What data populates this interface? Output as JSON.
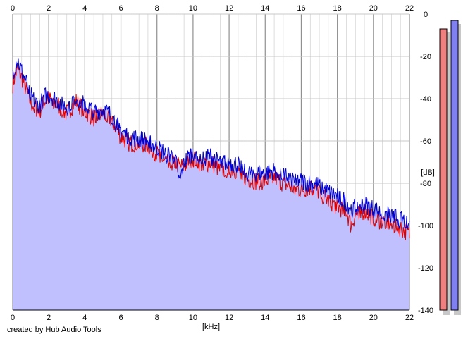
{
  "footer": {
    "credit": "created by Hub Audio Tools"
  },
  "colors": {
    "background": "#ffffff",
    "plot_fill": "#c0c0ff",
    "grid_minor": "#c8c8c8",
    "grid_major": "#909090",
    "left_channel": "#e00000",
    "right_channel": "#0000d0",
    "meter_left": "#f08080",
    "meter_right": "#8080f0",
    "meter_shadow": "#c8c8c8"
  },
  "chart_data": {
    "type": "line",
    "title": "",
    "xlabel": "[kHz]",
    "ylabel": "[dB]",
    "xlim": [
      0,
      22
    ],
    "ylim": [
      -140,
      0
    ],
    "x_ticks": [
      "0",
      "2",
      "4",
      "6",
      "8",
      "10",
      "12",
      "14",
      "16",
      "18",
      "20",
      "22"
    ],
    "y_ticks": [
      "0",
      "-20",
      "-40",
      "-60",
      "-80",
      "-100",
      "-120",
      "-140"
    ],
    "grid": true,
    "filled_area": true,
    "series": [
      {
        "color": "#e00000",
        "x": [
          0,
          0.25,
          0.5,
          0.75,
          1,
          1.25,
          1.5,
          1.75,
          2,
          2.5,
          3,
          3.5,
          4,
          4.5,
          5,
          5.5,
          6,
          6.5,
          7,
          7.5,
          8,
          8.5,
          9,
          9.25,
          9.5,
          10,
          10.5,
          11,
          11.5,
          12,
          12.5,
          13,
          13.5,
          14,
          14.5,
          15,
          15.5,
          16,
          16.5,
          17,
          17.5,
          18,
          18.5,
          18.75,
          19,
          19.5,
          20,
          20.5,
          21,
          21.5,
          22
        ],
        "y": [
          -33,
          -26,
          -30,
          -36,
          -42,
          -44,
          -46,
          -41,
          -40,
          -43,
          -47,
          -41,
          -46,
          -49,
          -47,
          -50,
          -58,
          -61,
          -61,
          -62,
          -66,
          -70,
          -70,
          -72,
          -72,
          -68,
          -71,
          -70,
          -74,
          -73,
          -74,
          -78,
          -79,
          -79,
          -77,
          -80,
          -82,
          -83,
          -82,
          -84,
          -88,
          -91,
          -93,
          -100,
          -95,
          -93,
          -96,
          -98,
          -99,
          -101,
          -104
        ]
      },
      {
        "color": "#0000d0",
        "x": [
          0,
          0.25,
          0.5,
          0.75,
          1,
          1.25,
          1.5,
          1.75,
          2,
          2.5,
          3,
          3.5,
          4,
          4.5,
          5,
          5.5,
          6,
          6.5,
          7,
          7.5,
          8,
          8.5,
          9,
          9.25,
          9.5,
          10,
          10.5,
          11,
          11.5,
          12,
          12.5,
          13,
          13.5,
          14,
          14.5,
          15,
          15.5,
          16,
          16.5,
          17,
          17.5,
          18,
          18.5,
          18.75,
          19,
          19.5,
          20,
          20.5,
          21,
          21.5,
          22
        ],
        "y": [
          -28,
          -21,
          -27,
          -32,
          -38,
          -42,
          -43,
          -39,
          -38,
          -41,
          -44,
          -39,
          -43,
          -46,
          -45,
          -48,
          -55,
          -58,
          -59,
          -60,
          -63,
          -66,
          -67,
          -80,
          -70,
          -65,
          -68,
          -67,
          -70,
          -70,
          -71,
          -75,
          -75,
          -75,
          -74,
          -76,
          -78,
          -79,
          -80,
          -81,
          -84,
          -86,
          -89,
          -92,
          -91,
          -90,
          -92,
          -94,
          -95,
          -97,
          -99
        ]
      }
    ],
    "level_meters": [
      {
        "channel": "left",
        "color": "#f08080",
        "level_db": -7
      },
      {
        "channel": "right",
        "color": "#8080f0",
        "level_db": -3
      }
    ]
  }
}
